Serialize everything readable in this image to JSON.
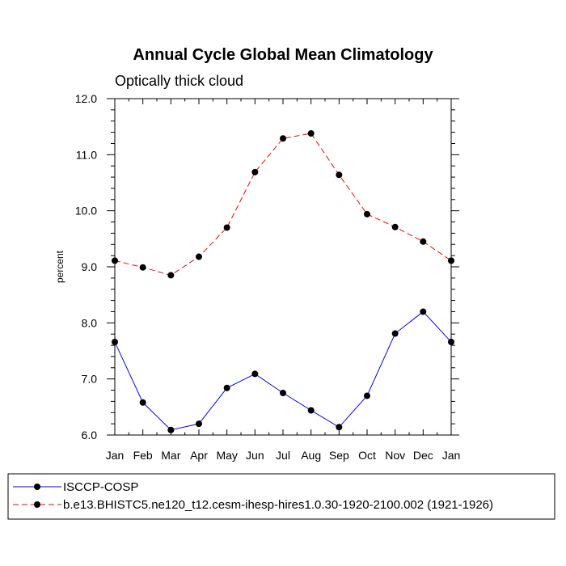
{
  "chart_data": {
    "type": "line",
    "title": "Annual Cycle Global Mean Climatology",
    "subtitle": "Optically thick cloud",
    "xlabel": "",
    "ylabel": "percent",
    "categories": [
      "Jan",
      "Feb",
      "Mar",
      "Apr",
      "May",
      "Jun",
      "Jul",
      "Aug",
      "Sep",
      "Oct",
      "Nov",
      "Dec",
      "Jan"
    ],
    "ylim": [
      6.0,
      12.0
    ],
    "yticks": [
      "6.0",
      "7.0",
      "8.0",
      "9.0",
      "10.0",
      "11.0",
      "12.0"
    ],
    "grid": false,
    "legend_position": "bottom",
    "series": [
      {
        "name": "ISCCP-COSP",
        "color": "#0000ff",
        "dash": "solid",
        "marker": "filled-circle",
        "values": [
          7.66,
          6.58,
          6.09,
          6.2,
          6.84,
          7.09,
          6.75,
          6.44,
          6.14,
          6.7,
          7.81,
          8.2,
          7.66
        ]
      },
      {
        "name": "b.e13.BHISTC5.ne120_t12.cesm-ihesp-hires1.0.30-1920-2100.002 (1921-1926)",
        "color": "#ff0000",
        "dash": "dashed",
        "marker": "filled-circle",
        "values": [
          9.11,
          8.99,
          8.85,
          9.18,
          9.7,
          10.69,
          11.29,
          11.38,
          10.64,
          9.94,
          9.71,
          9.45,
          9.11
        ]
      }
    ]
  }
}
